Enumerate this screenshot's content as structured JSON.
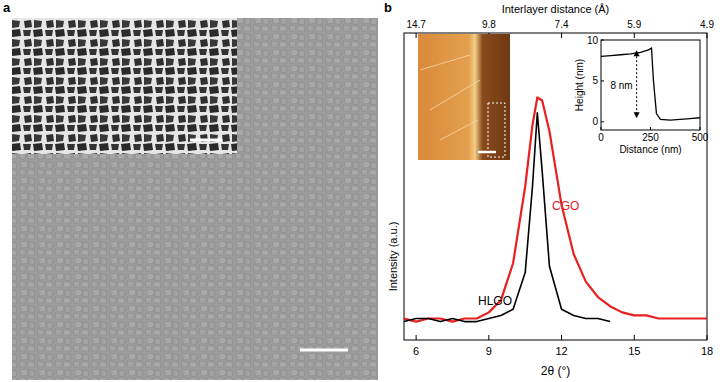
{
  "panel_labels": [
    "a",
    "b"
  ],
  "chart_data": [
    {
      "type": "line",
      "x_label": "2θ (°)",
      "y_label": "Intensity (a.u.)",
      "x2_label": "Interlayer distance (Å)",
      "x": [
        5.5,
        6,
        6.5,
        7,
        7.5,
        8,
        8.5,
        9,
        9.5,
        10,
        10.5,
        10.8,
        11,
        11.2,
        11.5,
        12,
        12.5,
        13,
        13.5,
        14,
        14.5,
        15,
        15.5,
        16,
        16.5,
        17,
        17.5,
        18
      ],
      "series": [
        {
          "name": "CGO",
          "color": "#e8201f",
          "values": [
            0.07,
            0.06,
            0.07,
            0.07,
            0.06,
            0.07,
            0.07,
            0.09,
            0.13,
            0.25,
            0.5,
            0.7,
            0.79,
            0.78,
            0.68,
            0.44,
            0.28,
            0.19,
            0.14,
            0.11,
            0.09,
            0.08,
            0.08,
            0.07,
            0.07,
            0.07,
            0.07,
            0.07
          ]
        },
        {
          "name": "HLGO",
          "color": "#000000",
          "values": [
            0.06,
            0.07,
            0.07,
            0.06,
            0.07,
            0.06,
            0.06,
            0.07,
            0.08,
            0.1,
            0.22,
            0.5,
            0.74,
            0.55,
            0.24,
            0.1,
            0.08,
            0.07,
            0.07,
            0.06,
            null,
            null,
            null,
            null,
            null,
            null,
            null,
            null
          ]
        }
      ],
      "xlim": [
        5.5,
        18
      ],
      "xticks": [
        6,
        9,
        12,
        15,
        18
      ],
      "x2ticks": [
        {
          "value": 6,
          "label": "14.7"
        },
        {
          "value": 9,
          "label": "9.8"
        },
        {
          "value": 12,
          "label": "7.4"
        },
        {
          "value": 15,
          "label": "5.9"
        },
        {
          "value": 18,
          "label": "4.9"
        }
      ],
      "ylim": [
        0,
        1
      ],
      "yticks": [],
      "tick_labels": "x",
      "grid": false
    },
    {
      "type": "line",
      "x_label": "Distance (nm)",
      "y_label": "Height (nm)",
      "x": [
        0,
        50,
        100,
        150,
        200,
        240,
        255,
        265,
        280,
        300,
        350,
        400,
        450,
        500
      ],
      "values": [
        8,
        8.1,
        8.2,
        8.3,
        8.5,
        8.8,
        9,
        5,
        1,
        0.3,
        0.2,
        0.3,
        0.4,
        0.5
      ],
      "color": "#000000",
      "xlim": [
        0,
        500
      ],
      "xticks": [
        0,
        250,
        500
      ],
      "ylim": [
        -1,
        10
      ],
      "yticks": [
        0,
        5,
        10
      ],
      "annotations": [
        "8 nm"
      ],
      "grid": false
    }
  ]
}
